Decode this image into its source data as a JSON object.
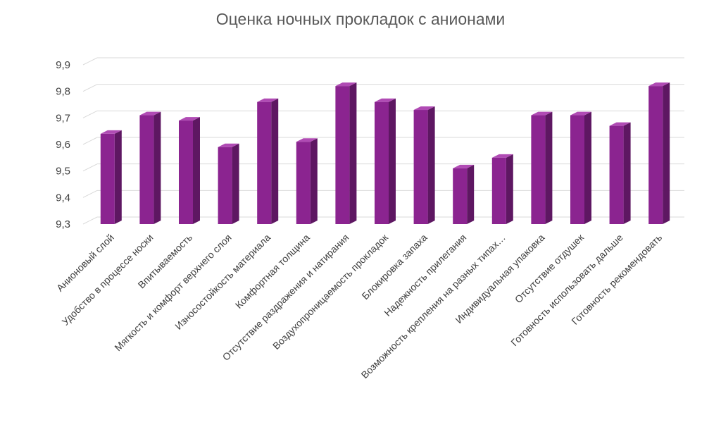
{
  "chart_data": {
    "type": "bar",
    "title": "Оценка ночных прокладок с анионами",
    "categories": [
      "Анионовый слой",
      "Удобство в процессе носки",
      "Впитываемость",
      "Мягкость и комфорт верхнего слоя",
      "Износостойкость материала",
      "Комфортная толщина",
      "Отсутствие раздражения и натирания",
      "Воздухопроницаемость прокладок",
      "Блокировка запаха",
      "Надежность прилегания",
      "Возможность крепления на разных типах…",
      "Индивидуальная упаковка",
      "Отсутствие отдушек",
      "Готовность использовать дальше",
      "Готовность рекомендовать"
    ],
    "values": [
      9.64,
      9.71,
      9.69,
      9.59,
      9.76,
      9.61,
      9.82,
      9.76,
      9.73,
      9.51,
      9.55,
      9.71,
      9.71,
      9.67,
      9.82
    ],
    "ylim": [
      9.3,
      9.9
    ],
    "yticks": [
      "9,3",
      "9,4",
      "9,5",
      "9,6",
      "9,7",
      "9,8",
      "9,9"
    ],
    "xlabel": "",
    "ylabel": "",
    "grid": true,
    "colors": {
      "bar_front": "#8b2490",
      "bar_side": "#5e1762",
      "bar_top": "#b04bb4",
      "grid": "#d9d9d9"
    }
  }
}
